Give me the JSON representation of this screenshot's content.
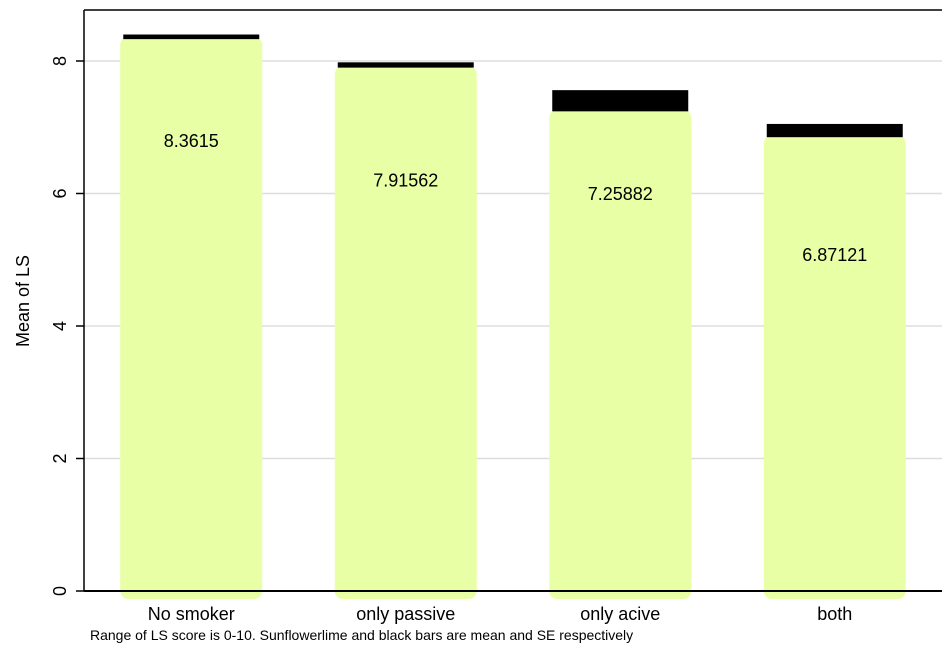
{
  "chart_data": {
    "type": "bar",
    "categories": [
      "No smoker",
      "only passive",
      "only acive",
      "both"
    ],
    "values": [
      8.3615,
      7.91562,
      7.25882,
      6.87121
    ],
    "value_labels": [
      "8.3615",
      "7.91562",
      "7.25882",
      "6.87121"
    ],
    "se_bar": [
      {
        "low": 8.33,
        "high": 8.4
      },
      {
        "low": 7.9,
        "high": 7.98
      },
      {
        "low": 7.24,
        "high": 7.56
      },
      {
        "low": 6.85,
        "high": 7.05
      }
    ],
    "ylabel": "Mean of LS",
    "xlabel": "",
    "ylim": [
      0,
      8.5
    ],
    "yticks": [
      0,
      2,
      4,
      6,
      8
    ],
    "grid": true,
    "note": "Range of LS score is 0-10. Sunflowerlime and black bars are mean and SE respectively",
    "colors": {
      "bar": "#E8FFA6",
      "se": "#000000",
      "grid": "#DDDDDD",
      "axis": "#000000"
    }
  }
}
